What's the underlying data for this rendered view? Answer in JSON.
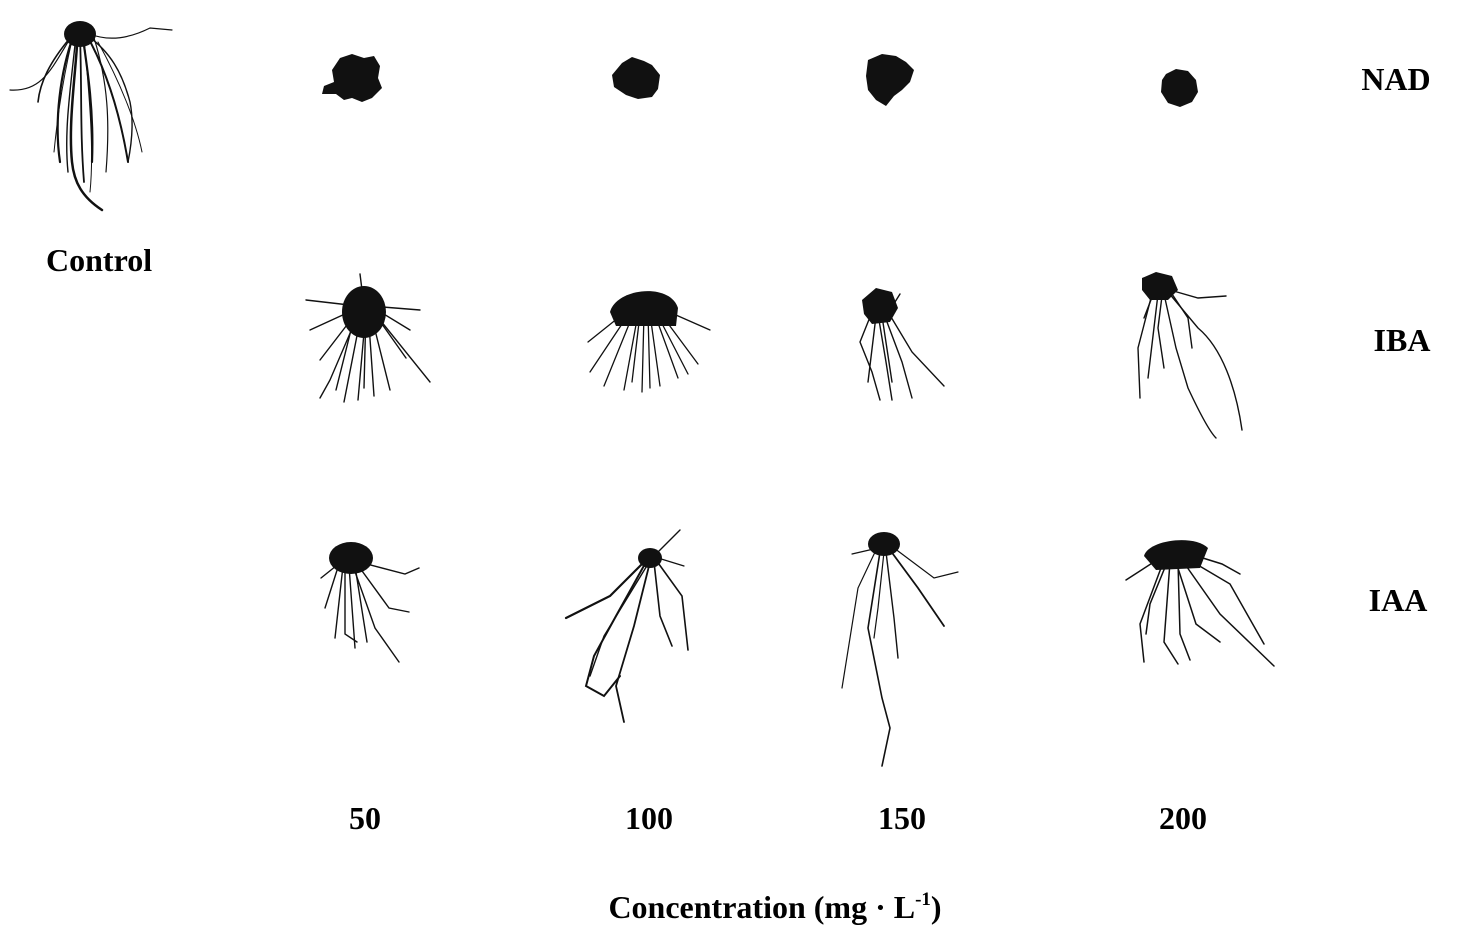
{
  "figure": {
    "control_label": "Control",
    "row_labels": [
      "NAD",
      "IBA",
      "IAA"
    ],
    "concentrations": [
      "50",
      "100",
      "150",
      "200"
    ],
    "axis_title": {
      "prefix": "Concentration (mg · L",
      "superscript": "-1",
      "suffix": ")"
    }
  },
  "specimens": [
    {
      "id": "control",
      "kind": "long-fibrous"
    },
    {
      "id": "nad-50",
      "kind": "callus"
    },
    {
      "id": "nad-100",
      "kind": "callus"
    },
    {
      "id": "nad-150",
      "kind": "callus"
    },
    {
      "id": "nad-200",
      "kind": "callus"
    },
    {
      "id": "iba-50",
      "kind": "dense-fibrous"
    },
    {
      "id": "iba-100",
      "kind": "dense-fibrous"
    },
    {
      "id": "iba-150",
      "kind": "sparse-long"
    },
    {
      "id": "iba-200",
      "kind": "sparse-long"
    },
    {
      "id": "iaa-50",
      "kind": "dense-fibrous"
    },
    {
      "id": "iaa-100",
      "kind": "spreading"
    },
    {
      "id": "iaa-150",
      "kind": "sparse-long"
    },
    {
      "id": "iaa-200",
      "kind": "spreading"
    }
  ],
  "colors": {
    "root": "#111111",
    "background": "#ffffff"
  }
}
